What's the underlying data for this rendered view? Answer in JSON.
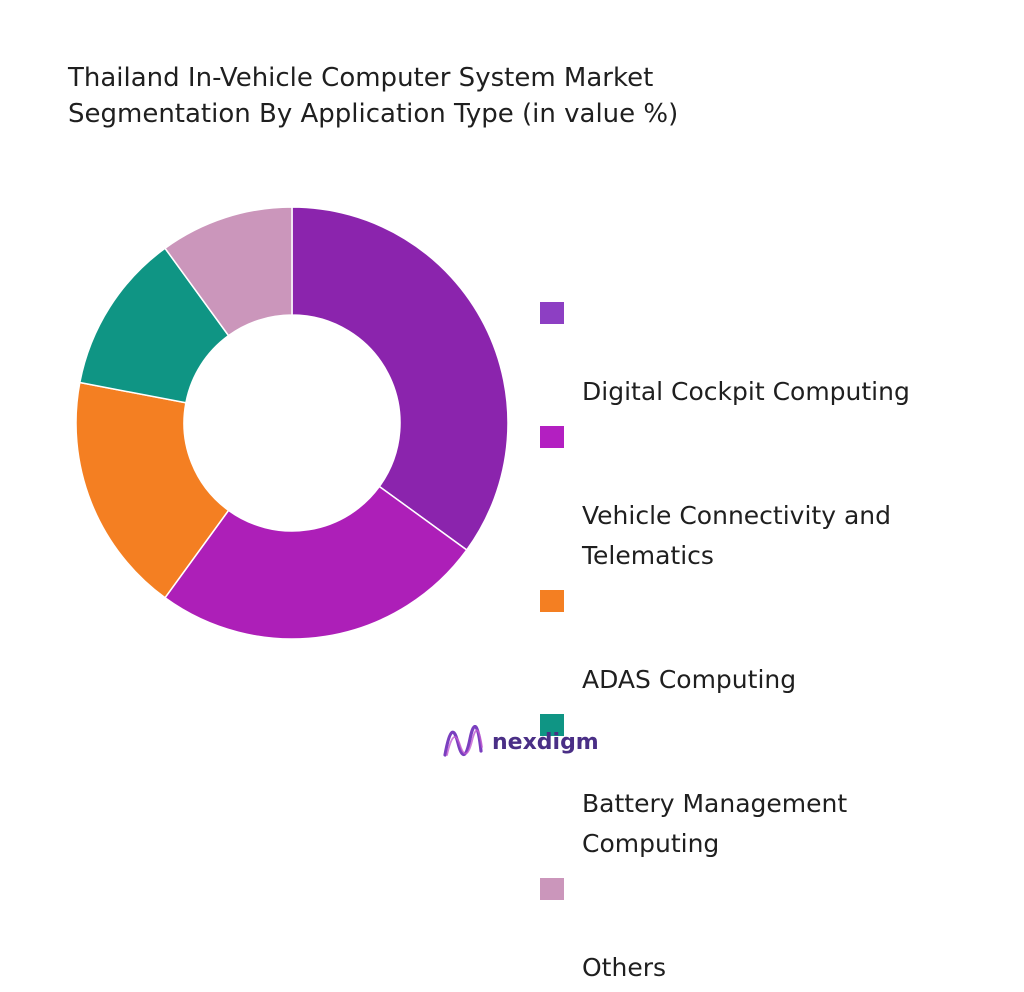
{
  "chart_data": {
    "type": "pie",
    "style": "donut",
    "title": "Thailand In-Vehicle Computer System Market Segmentation By Application Type (in value %)",
    "title_lines": [
      "Thailand In-Vehicle Computer System Market",
      "Segmentation By Application Type (in value %)"
    ],
    "categories": [
      "Digital Cockpit Computing",
      "Vehicle Connectivity and Telematics",
      "ADAS Computing",
      "Battery Management Computing",
      "Others"
    ],
    "values": [
      35,
      25,
      18,
      12,
      10
    ],
    "unit": "%",
    "colors": [
      "#8b24ad",
      "#ad1fb8",
      "#f47f22",
      "#0f9584",
      "#cb96bb"
    ],
    "legend_swatch_colors": [
      "#8d3fc3",
      "#b31fc1",
      "#f47f22",
      "#0f9584",
      "#cb96bb"
    ],
    "legend_position": "right",
    "legend_lines": [
      "Digital Cockpit Computing",
      "Vehicle Connectivity and\nTelematics",
      "ADAS Computing",
      "Battery Management\nComputing",
      "Others"
    ]
  },
  "brand": {
    "name": "nexdigm",
    "logo_icon": "nexdigm-wave-logo-icon",
    "color": "#4a2f86"
  }
}
